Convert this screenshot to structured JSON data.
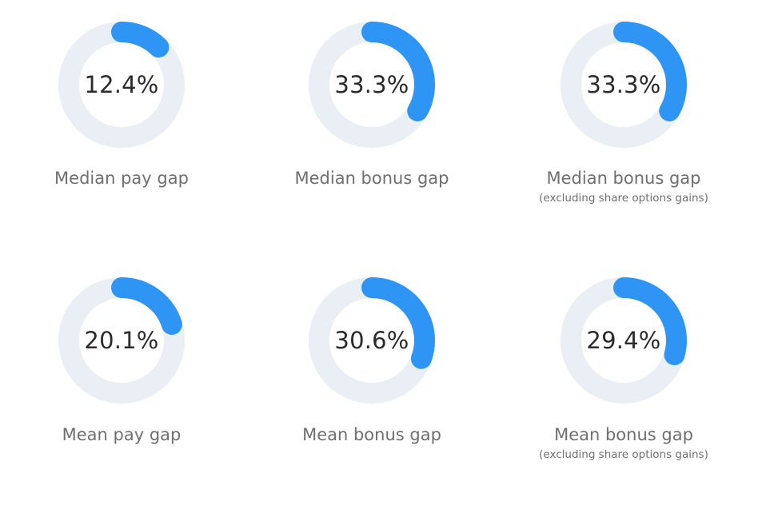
{
  "chart_data": {
    "type": "donut",
    "colors": {
      "track": "#e9eff5",
      "fill": "#2e95f5",
      "text": "#2b2b2b",
      "label": "#6f6f6f"
    },
    "items": [
      {
        "value": 12.4,
        "display": "12.4%",
        "label": "Median pay gap",
        "sublabel": ""
      },
      {
        "value": 33.3,
        "display": "33.3%",
        "label": "Median bonus gap",
        "sublabel": ""
      },
      {
        "value": 33.3,
        "display": "33.3%",
        "label": "Median bonus gap",
        "sublabel": "(excluding share options gains)"
      },
      {
        "value": 20.1,
        "display": "20.1%",
        "label": "Mean pay gap",
        "sublabel": ""
      },
      {
        "value": 30.6,
        "display": "30.6%",
        "label": "Mean bonus gap",
        "sublabel": ""
      },
      {
        "value": 29.4,
        "display": "29.4%",
        "label": "Mean bonus gap",
        "sublabel": "(excluding share options gains)"
      }
    ]
  }
}
